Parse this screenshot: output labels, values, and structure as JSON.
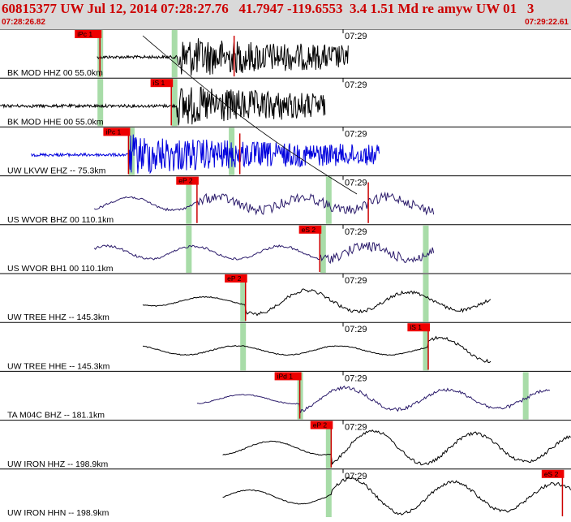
{
  "header": {
    "title": "60815377 UW Jul 12, 2014 07:28:27.76   41.7947 -119.6553  3.4 1.51 Md re amyw UW 01   3",
    "start_time": "07:28:26.82",
    "end_time": "07:29:22.61"
  },
  "colors": {
    "header_bg": "#d9d9d9",
    "header_text": "#cc0000",
    "pick_label_bg": "#ee0000",
    "pick_line": "#cc0000",
    "window_marker": "#a8dca8",
    "trace_blue": "#0000dd",
    "trace_purple": "#2a1a6a",
    "trace_black": "#000000",
    "theoretical_curve": "#000000"
  },
  "traces": [
    {
      "label": "BK MOD HHZ 00 55.0km",
      "minute_label": "07:29",
      "color": "black",
      "style": "highfreq",
      "amplitude": "large",
      "start_fraction": 0.17,
      "end_fraction": 0.61,
      "onset_fraction": 0.31,
      "picks": [
        {
          "label": "iPc 1",
          "time_fraction": 0.175
        },
        {
          "label": "",
          "time_fraction": 0.41
        }
      ],
      "windows": [
        0.175,
        0.305
      ]
    },
    {
      "label": "BK MOD HHE 00 55.0km",
      "minute_label": "07:29",
      "color": "black",
      "style": "highfreq",
      "amplitude": "large",
      "start_fraction": 0.0,
      "end_fraction": 0.57,
      "onset_fraction": 0.31,
      "picks": [
        {
          "label": "iS 1",
          "time_fraction": 0.3
        }
      ],
      "windows": [
        0.175,
        0.305
      ]
    },
    {
      "label": "UW LKVW EHZ -- 75.3km",
      "minute_label": "07:29",
      "color": "blue",
      "style": "highfreq",
      "amplitude": "large",
      "start_fraction": 0.055,
      "end_fraction": 0.665,
      "onset_fraction": 0.225,
      "picks": [
        {
          "label": "iPc 1",
          "time_fraction": 0.225
        },
        {
          "label": "",
          "time_fraction": 0.42
        }
      ],
      "windows": [
        0.23,
        0.405
      ]
    },
    {
      "label": "US WVOR BHZ 00 110.1km",
      "minute_label": "07:29",
      "color": "purple",
      "style": "mixed",
      "amplitude": "medium",
      "start_fraction": 0.165,
      "end_fraction": 0.76,
      "onset_fraction": 0.345,
      "picks": [
        {
          "label": "eP 2",
          "time_fraction": 0.345
        },
        {
          "label": "",
          "time_fraction": 0.645
        }
      ],
      "windows": [
        0.33,
        0.575
      ]
    },
    {
      "label": "US WVOR BH1 00 110.1km",
      "minute_label": "07:29",
      "color": "purple",
      "style": "mixed",
      "amplitude": "medium",
      "start_fraction": 0.165,
      "end_fraction": 0.76,
      "onset_fraction": 0.56,
      "picks": [
        {
          "label": "eS 2",
          "time_fraction": 0.56
        }
      ],
      "windows": [
        0.33,
        0.565,
        0.745
      ]
    },
    {
      "label": "UW TREE HHZ -- 145.3km",
      "minute_label": "07:29",
      "color": "black",
      "style": "lowfreq",
      "amplitude": "medium",
      "start_fraction": 0.25,
      "end_fraction": 0.86,
      "onset_fraction": 0.43,
      "picks": [
        {
          "label": "eP 2",
          "time_fraction": 0.43
        }
      ],
      "windows": [
        0.425,
        0.745
      ]
    },
    {
      "label": "UW TREE HHE -- 145.3km",
      "minute_label": "07:29",
      "color": "black",
      "style": "lowfreq",
      "amplitude": "medium",
      "start_fraction": 0.25,
      "end_fraction": 0.86,
      "onset_fraction": 0.75,
      "picks": [
        {
          "label": "iS 1",
          "time_fraction": 0.75
        }
      ],
      "windows": [
        0.425,
        0.745
      ]
    },
    {
      "label": "TA M04C BHZ -- 181.1km",
      "minute_label": "07:29",
      "color": "purple",
      "style": "lowfreq",
      "amplitude": "medium",
      "start_fraction": 0.345,
      "end_fraction": 0.965,
      "onset_fraction": 0.525,
      "picks": [
        {
          "label": "iPd 1",
          "time_fraction": 0.525
        }
      ],
      "windows": [
        0.525,
        0.92
      ]
    },
    {
      "label": "UW IRON HHZ -- 198.9km",
      "minute_label": "07:29",
      "color": "black",
      "style": "lowfreq",
      "amplitude": "large",
      "start_fraction": 0.39,
      "end_fraction": 1.0,
      "onset_fraction": 0.58,
      "picks": [
        {
          "label": "eP 2",
          "time_fraction": 0.58
        }
      ],
      "windows": [
        0.575
      ]
    },
    {
      "label": "UW IRON HHN -- 198.9km",
      "minute_label": "07:29",
      "color": "black",
      "style": "lowfreq",
      "amplitude": "large",
      "start_fraction": 0.39,
      "end_fraction": 1.0,
      "onset_fraction": 0.58,
      "picks": [
        {
          "label": "eS 2",
          "time_fraction": 0.985
        }
      ],
      "windows": [
        0.575
      ]
    }
  ]
}
